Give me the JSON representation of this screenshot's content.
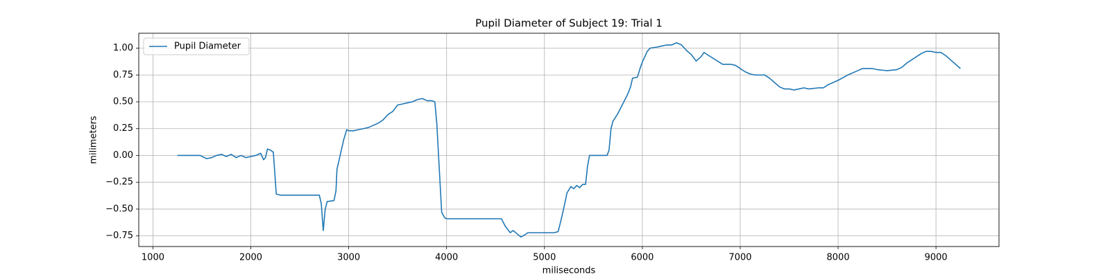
{
  "chart_data": {
    "type": "line",
    "title": "Pupil Diameter of Subject 19: Trial 1",
    "x_label": "miliseconds",
    "y_label": "milimeters",
    "xlim": [
      855,
      9644
    ],
    "ylim": [
      -0.849,
      1.139
    ],
    "xticks": [
      1000,
      2000,
      3000,
      4000,
      5000,
      6000,
      7000,
      8000,
      9000
    ],
    "yticks": [
      {
        "value": -0.75,
        "label": "−0.75"
      },
      {
        "value": -0.5,
        "label": "−0.50"
      },
      {
        "value": -0.25,
        "label": "−0.25"
      },
      {
        "value": 0,
        "label": "0.00"
      },
      {
        "value": 0.25,
        "label": "0.25"
      },
      {
        "value": 0.5,
        "label": "0.50"
      },
      {
        "value": 0.75,
        "label": "0.75"
      },
      {
        "value": 1,
        "label": "1.00"
      }
    ],
    "grid": true,
    "legend": "upper-left",
    "x": [
      1250,
      1480,
      1550,
      1600,
      1650,
      1700,
      1750,
      1800,
      1850,
      1900,
      1950,
      2000,
      2050,
      2100,
      2130,
      2150,
      2170,
      2200,
      2230,
      2260,
      2300,
      2700,
      2720,
      2740,
      2760,
      2780,
      2850,
      2870,
      2880,
      2900,
      2950,
      2980,
      3000,
      3050,
      3100,
      3150,
      3200,
      3250,
      3300,
      3350,
      3400,
      3450,
      3500,
      3550,
      3600,
      3650,
      3700,
      3750,
      3780,
      3800,
      3850,
      3880,
      3900,
      3930,
      3950,
      3980,
      4000,
      4560,
      4600,
      4650,
      4680,
      4720,
      4760,
      4800,
      4830,
      5100,
      5140,
      5170,
      5200,
      5230,
      5270,
      5300,
      5330,
      5360,
      5390,
      5420,
      5440,
      5460,
      5640,
      5660,
      5680,
      5700,
      5750,
      5800,
      5850,
      5880,
      5900,
      5950,
      5980,
      6000,
      6050,
      6080,
      6150,
      6200,
      6250,
      6300,
      6350,
      6400,
      6450,
      6500,
      6550,
      6600,
      6630,
      6680,
      6750,
      6820,
      6900,
      6950,
      7000,
      7050,
      7100,
      7150,
      7250,
      7300,
      7350,
      7400,
      7450,
      7500,
      7550,
      7600,
      7650,
      7700,
      7800,
      7850,
      7900,
      7950,
      8000,
      8100,
      8200,
      8250,
      8350,
      8400,
      8500,
      8600,
      8650,
      8700,
      8800,
      8850,
      8900,
      8950,
      9000,
      9050,
      9100,
      9150,
      9200,
      9250
    ],
    "series": [
      {
        "name": "Pupil Diameter",
        "color": "#1f77b4",
        "values": [
          0,
          0,
          -0.03,
          -0.02,
          0,
          0.01,
          -0.01,
          0.01,
          -0.02,
          0,
          -0.02,
          -0.01,
          0,
          0.02,
          -0.04,
          -0.02,
          0.06,
          0.05,
          0.03,
          -0.36,
          -0.37,
          -0.37,
          -0.45,
          -0.7,
          -0.5,
          -0.43,
          -0.42,
          -0.33,
          -0.13,
          -0.05,
          0.15,
          0.24,
          0.23,
          0.23,
          0.24,
          0.25,
          0.26,
          0.28,
          0.3,
          0.33,
          0.38,
          0.41,
          0.47,
          0.48,
          0.49,
          0.5,
          0.52,
          0.53,
          0.52,
          0.51,
          0.51,
          0.5,
          0.3,
          -0.2,
          -0.53,
          -0.58,
          -0.59,
          -0.59,
          -0.66,
          -0.72,
          -0.7,
          -0.73,
          -0.76,
          -0.74,
          -0.72,
          -0.72,
          -0.71,
          -0.6,
          -0.48,
          -0.35,
          -0.29,
          -0.31,
          -0.28,
          -0.3,
          -0.27,
          -0.27,
          -0.1,
          0,
          0,
          0.05,
          0.25,
          0.32,
          0.39,
          0.48,
          0.57,
          0.64,
          0.72,
          0.73,
          0.82,
          0.87,
          0.97,
          1.0,
          1.01,
          1.02,
          1.03,
          1.03,
          1.05,
          1.03,
          0.98,
          0.94,
          0.88,
          0.92,
          0.96,
          0.93,
          0.89,
          0.85,
          0.85,
          0.84,
          0.81,
          0.78,
          0.76,
          0.75,
          0.75,
          0.72,
          0.68,
          0.64,
          0.62,
          0.62,
          0.61,
          0.62,
          0.63,
          0.62,
          0.63,
          0.63,
          0.66,
          0.68,
          0.7,
          0.75,
          0.79,
          0.81,
          0.81,
          0.8,
          0.79,
          0.8,
          0.82,
          0.86,
          0.92,
          0.95,
          0.97,
          0.97,
          0.96,
          0.96,
          0.93,
          0.89,
          0.85,
          0.81
        ]
      }
    ]
  }
}
